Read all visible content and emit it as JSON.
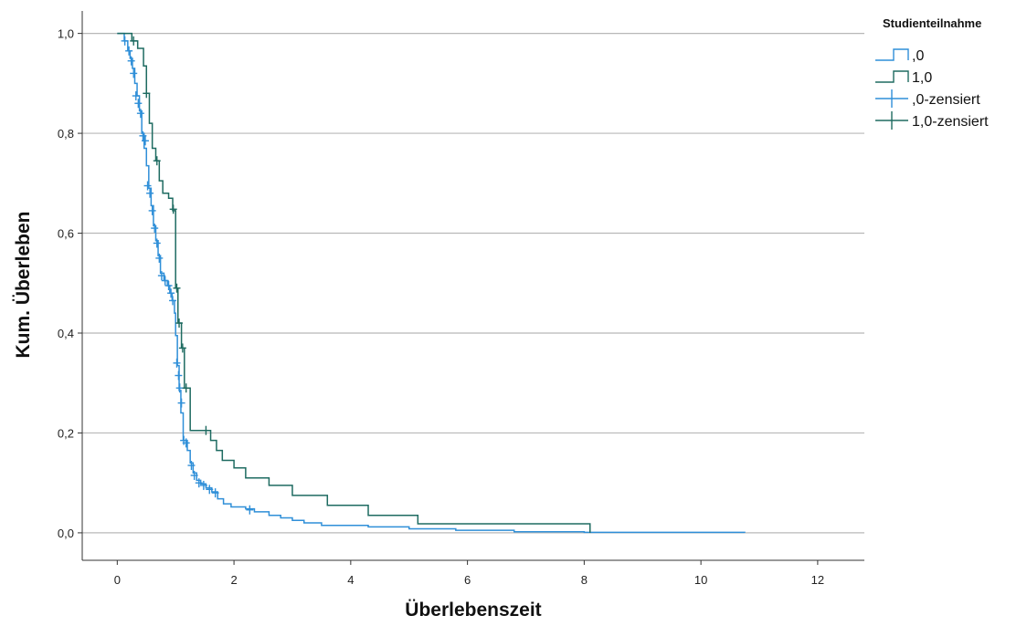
{
  "chart_data": {
    "type": "line",
    "subtype": "kaplan-meier-step",
    "xlabel": "Überlebenszeit",
    "ylabel": "Kum. Überleben",
    "xlim": [
      -0.6,
      12.8
    ],
    "ylim": [
      -0.055,
      1.045
    ],
    "xticks": [
      0,
      2,
      4,
      6,
      8,
      10,
      12
    ],
    "xtick_labels": [
      "0",
      "2",
      "4",
      "6",
      "8",
      "10",
      "12"
    ],
    "yticks": [
      0.0,
      0.2,
      0.4,
      0.6,
      0.8,
      1.0
    ],
    "ytick_labels": [
      "0,0",
      "0,2",
      "0,4",
      "0,6",
      "0,8",
      "1,0"
    ],
    "grid": "horizontal",
    "legend": {
      "title": "Studienteilnahme",
      "placement": "top-right",
      "entries": [
        ",0",
        "1,0",
        ",0-zensiert",
        "1,0-zensiert"
      ]
    },
    "colors": {
      "group0": "#2f8fd8",
      "group1": "#1e6b61"
    },
    "series": [
      {
        "name": ",0",
        "color": "#2f8fd8",
        "steps": [
          [
            0.05,
            1.0
          ],
          [
            0.12,
            0.985
          ],
          [
            0.18,
            0.965
          ],
          [
            0.22,
            0.95
          ],
          [
            0.26,
            0.93
          ],
          [
            0.3,
            0.9
          ],
          [
            0.34,
            0.875
          ],
          [
            0.38,
            0.845
          ],
          [
            0.42,
            0.8
          ],
          [
            0.46,
            0.77
          ],
          [
            0.5,
            0.735
          ],
          [
            0.54,
            0.69
          ],
          [
            0.58,
            0.655
          ],
          [
            0.62,
            0.615
          ],
          [
            0.66,
            0.585
          ],
          [
            0.7,
            0.555
          ],
          [
            0.74,
            0.52
          ],
          [
            0.8,
            0.505
          ],
          [
            0.86,
            0.495
          ],
          [
            0.9,
            0.48
          ],
          [
            0.94,
            0.465
          ],
          [
            0.98,
            0.44
          ],
          [
            1.0,
            0.395
          ],
          [
            1.03,
            0.335
          ],
          [
            1.06,
            0.285
          ],
          [
            1.09,
            0.24
          ],
          [
            1.13,
            0.185
          ],
          [
            1.2,
            0.165
          ],
          [
            1.25,
            0.14
          ],
          [
            1.3,
            0.12
          ],
          [
            1.36,
            0.105
          ],
          [
            1.43,
            0.098
          ],
          [
            1.52,
            0.09
          ],
          [
            1.62,
            0.082
          ],
          [
            1.72,
            0.068
          ],
          [
            1.82,
            0.058
          ],
          [
            1.95,
            0.052
          ],
          [
            2.2,
            0.048
          ],
          [
            2.35,
            0.042
          ],
          [
            2.6,
            0.035
          ],
          [
            2.8,
            0.03
          ],
          [
            3.0,
            0.025
          ],
          [
            3.2,
            0.02
          ],
          [
            3.5,
            0.015
          ],
          [
            4.3,
            0.012
          ],
          [
            5.0,
            0.008
          ],
          [
            5.8,
            0.005
          ],
          [
            6.8,
            0.002
          ],
          [
            8.0,
            0.001
          ],
          [
            10.75,
            0.0
          ]
        ],
        "end_x": 10.75,
        "censored": [
          [
            0.13,
            0.985
          ],
          [
            0.2,
            0.965
          ],
          [
            0.24,
            0.945
          ],
          [
            0.28,
            0.92
          ],
          [
            0.32,
            0.875
          ],
          [
            0.36,
            0.86
          ],
          [
            0.4,
            0.84
          ],
          [
            0.44,
            0.795
          ],
          [
            0.48,
            0.785
          ],
          [
            0.52,
            0.695
          ],
          [
            0.56,
            0.68
          ],
          [
            0.6,
            0.645
          ],
          [
            0.64,
            0.61
          ],
          [
            0.68,
            0.58
          ],
          [
            0.72,
            0.55
          ],
          [
            0.76,
            0.515
          ],
          [
            0.82,
            0.505
          ],
          [
            0.88,
            0.495
          ],
          [
            0.92,
            0.48
          ],
          [
            0.95,
            0.465
          ],
          [
            1.02,
            0.34
          ],
          [
            1.05,
            0.315
          ],
          [
            1.07,
            0.29
          ],
          [
            1.1,
            0.26
          ],
          [
            1.14,
            0.185
          ],
          [
            1.18,
            0.18
          ],
          [
            1.27,
            0.135
          ],
          [
            1.32,
            0.115
          ],
          [
            1.4,
            0.1
          ],
          [
            1.48,
            0.095
          ],
          [
            1.58,
            0.087
          ],
          [
            1.68,
            0.08
          ],
          [
            2.27,
            0.046
          ]
        ]
      },
      {
        "name": "1,0",
        "color": "#1e6b61",
        "steps": [
          [
            0.25,
            0.985
          ],
          [
            0.35,
            0.97
          ],
          [
            0.45,
            0.935
          ],
          [
            0.5,
            0.88
          ],
          [
            0.55,
            0.82
          ],
          [
            0.6,
            0.77
          ],
          [
            0.66,
            0.745
          ],
          [
            0.72,
            0.705
          ],
          [
            0.78,
            0.68
          ],
          [
            0.88,
            0.67
          ],
          [
            0.95,
            0.645
          ],
          [
            1.0,
            0.49
          ],
          [
            1.04,
            0.42
          ],
          [
            1.1,
            0.37
          ],
          [
            1.15,
            0.29
          ],
          [
            1.25,
            0.205
          ],
          [
            1.6,
            0.185
          ],
          [
            1.7,
            0.165
          ],
          [
            1.8,
            0.145
          ],
          [
            2.0,
            0.13
          ],
          [
            2.2,
            0.11
          ],
          [
            2.6,
            0.095
          ],
          [
            3.0,
            0.075
          ],
          [
            3.6,
            0.055
          ],
          [
            4.3,
            0.035
          ],
          [
            5.15,
            0.018
          ],
          [
            8.1,
            0.0
          ]
        ],
        "end_x": 8.1,
        "censored": [
          [
            0.28,
            0.985
          ],
          [
            0.5,
            0.88
          ],
          [
            0.68,
            0.745
          ],
          [
            0.96,
            0.648
          ],
          [
            1.02,
            0.49
          ],
          [
            1.06,
            0.42
          ],
          [
            1.12,
            0.37
          ],
          [
            1.18,
            0.29
          ],
          [
            1.52,
            0.205
          ]
        ]
      }
    ]
  }
}
